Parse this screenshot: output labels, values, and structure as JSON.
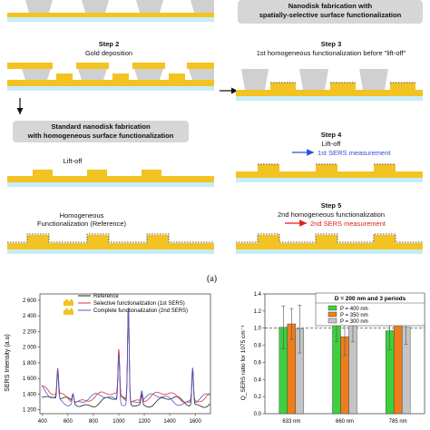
{
  "colors": {
    "gold": "#f2c322",
    "substrate": "#c8ecf7",
    "resist": "#d0d0d0",
    "arrow_blue": "#2b4fd6",
    "arrow_red": "#e21b1b"
  },
  "header_right": {
    "line1": "Nanodisk fabrication with",
    "line2": "spatially-selective surface functionalization"
  },
  "left": {
    "step2": {
      "title": "Step 2",
      "caption": "Gold deposition"
    },
    "box": {
      "line1": "Standard nanodisk fabrication",
      "line2": "with homogeneous surface functionalization"
    },
    "liftoff": "Lift-off",
    "homog": {
      "line1": "Homogeneous",
      "line2": "Functionalization (Reference)"
    }
  },
  "right": {
    "step3": {
      "title": "Step 3",
      "caption": "1st homogeneous functionalization before \"lift-off\""
    },
    "step4": {
      "title": "Step 4",
      "caption": "Lift-off",
      "note": "1st SERS measurement"
    },
    "step5": {
      "title": "Step 5",
      "caption": "2nd homogeneous functionalization",
      "note": "2nd SERS measurement"
    }
  },
  "panel_label": "(a)",
  "chart_data": [
    {
      "type": "line",
      "ylabel": "SERS Intensity (a.u)",
      "xticks": [
        400,
        600,
        800,
        1000,
        1200,
        1400,
        1600
      ],
      "yticks": [
        1200,
        1400,
        1600,
        1800,
        2000,
        2200,
        2400,
        2600
      ],
      "xlim": [
        380,
        1720
      ],
      "ylim": [
        1150,
        2680
      ],
      "series": [
        {
          "name": "Reference",
          "color": "#222222",
          "values": []
        },
        {
          "name": "Selective functionalization (1st SERS)",
          "color": "#e0303a",
          "values": []
        },
        {
          "name": "Complete functionalization (2nd SERS)",
          "color": "#4a5cc8",
          "values": []
        }
      ],
      "peaks_x": [
        520,
        640,
        1000,
        1075,
        1180,
        1580
      ],
      "peak_y": [
        1700,
        1460,
        1950,
        2560,
        1480,
        1780
      ]
    },
    {
      "type": "bar",
      "title": "D = 200 nm and 3 periods",
      "ylabel": "Q_SERS ratio for 1075 cm⁻¹",
      "categories": [
        "633 nm",
        "660 nm",
        "785 nm"
      ],
      "ylim": [
        0,
        1.4
      ],
      "yticks": [
        0.0,
        0.2,
        0.4,
        0.6,
        0.8,
        1.0,
        1.2,
        1.4
      ],
      "reference_line": 1.0,
      "series": [
        {
          "name": "P = 400 nm",
          "color": "#3ecf3e",
          "values": [
            1.01,
            1.06,
            0.97
          ],
          "errors": [
            0.25,
            0.22,
            0.22
          ]
        },
        {
          "name": "P = 350 nm",
          "color": "#ee7d1e",
          "values": [
            1.05,
            0.9,
            1.15
          ],
          "errors": [
            0.18,
            0.22,
            0.1
          ]
        },
        {
          "name": "P = 300 nm",
          "color": "#c4c4c4",
          "values": [
            0.99,
            1.04,
            1.01
          ],
          "errors": [
            0.28,
            0.2,
            0.2
          ]
        }
      ]
    }
  ]
}
